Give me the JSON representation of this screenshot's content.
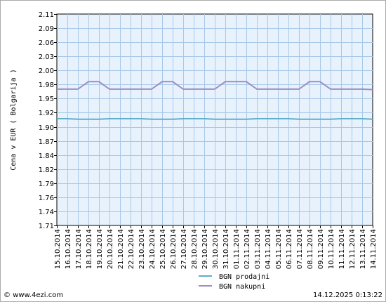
{
  "chart_data": {
    "type": "line",
    "ylabel": "Cena v EUR  ( Bolgarija )",
    "ylim": [
      1.71,
      2.11
    ],
    "y_ticks": [
      "2.11",
      "2.09",
      "2.06",
      "2.03",
      "2.00",
      "1.98",
      "1.95",
      "1.92",
      "1.90",
      "1.87",
      "1.84",
      "1.82",
      "1.79",
      "1.76",
      "1.74",
      "1.71"
    ],
    "x": [
      "15.10.2014",
      "16.10.2014",
      "17.10.2014",
      "18.10.2014",
      "19.10.2014",
      "20.10.2014",
      "21.10.2014",
      "22.10.2014",
      "23.10.2014",
      "24.10.2014",
      "25.10.2014",
      "26.10.2014",
      "27.10.2014",
      "28.10.2014",
      "29.10.2014",
      "30.10.2014",
      "31.10.2014",
      "01.11.2014",
      "02.11.2014",
      "03.11.2014",
      "04.11.2014",
      "05.11.2014",
      "06.11.2014",
      "07.11.2014",
      "08.11.2014",
      "09.11.2014",
      "10.11.2014",
      "11.11.2014",
      "12.11.2014",
      "13.11.2014",
      "14.11.2014"
    ],
    "grid": true,
    "legend_position": "bottom",
    "series": [
      {
        "name": "BGN prodajni",
        "color": "#5fafc8",
        "values": [
          1.912,
          1.912,
          1.911,
          1.911,
          1.911,
          1.912,
          1.912,
          1.912,
          1.912,
          1.911,
          1.911,
          1.911,
          1.912,
          1.912,
          1.912,
          1.911,
          1.911,
          1.911,
          1.911,
          1.912,
          1.912,
          1.912,
          1.912,
          1.911,
          1.911,
          1.911,
          1.911,
          1.912,
          1.912,
          1.912,
          1.911
        ]
      },
      {
        "name": "BGN nakupni",
        "color": "#9d8ec4",
        "values": [
          1.968,
          1.968,
          1.968,
          1.982,
          1.982,
          1.968,
          1.968,
          1.968,
          1.968,
          1.968,
          1.982,
          1.982,
          1.968,
          1.968,
          1.968,
          1.968,
          1.982,
          1.982,
          1.982,
          1.968,
          1.968,
          1.968,
          1.968,
          1.968,
          1.982,
          1.982,
          1.968,
          1.968,
          1.968,
          1.968,
          1.967
        ]
      }
    ]
  },
  "footer": {
    "left": "© www.4ezi.com",
    "right": "14.12.2025  0:13:22"
  },
  "colors": {
    "plot_bg": "#e8f2fc",
    "grid": "#a8c8e8",
    "axis": "#000000"
  }
}
